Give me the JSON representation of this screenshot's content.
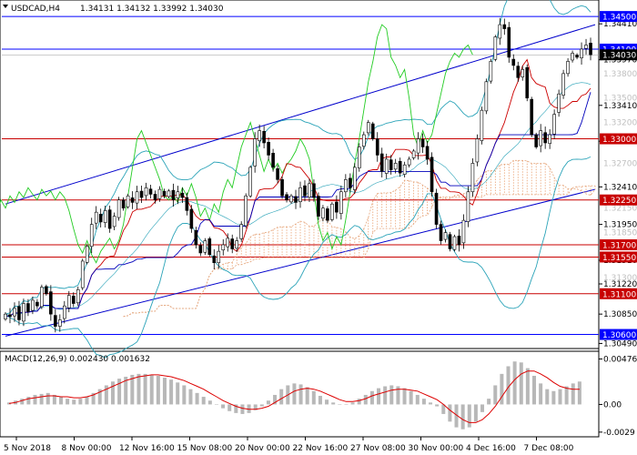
{
  "chart_data": [
    {
      "type": "candlestick",
      "symbol_label": "USDCAD,H4",
      "ohlc_label": "1.34131 1.34132 1.33992 1.34030",
      "ylim": [
        1.3045,
        1.3468
      ],
      "y_ticks": [
        "1.34410",
        "1.33970",
        "1.33410",
        "1.32970",
        "1.32410",
        "1.31950",
        "1.31510",
        "1.31220",
        "1.30850",
        "1.30490"
      ],
      "y_ticks_faded": [
        "1.33800",
        "1.33500",
        "1.33200",
        "1.32700",
        "1.32150",
        "1.31850",
        "1.31300"
      ],
      "x_ticks": [
        "5 Nov 2018",
        "8 Nov 00:00",
        "12 Nov 16:00",
        "15 Nov 08:00",
        "20 Nov 00:00",
        "22 Nov 16:00",
        "27 Nov 08:00",
        "30 Nov 00:00",
        "4 Dec 16:00",
        "7 Dec 08:00"
      ],
      "levels": [
        {
          "label": "1.34500",
          "value": 1.345,
          "color": "#0000ff",
          "kind": "line"
        },
        {
          "label": "1.34100",
          "value": 1.341,
          "color": "#0000ff",
          "kind": "line"
        },
        {
          "label": "1.34030",
          "value": 1.3403,
          "color": "#000000",
          "kind": "price"
        },
        {
          "label": "1.33000",
          "value": 1.33,
          "color": "#c80000",
          "kind": "line"
        },
        {
          "label": "1.32250",
          "value": 1.3225,
          "color": "#c80000",
          "kind": "line"
        },
        {
          "label": "1.31700",
          "value": 1.317,
          "color": "#c80000",
          "kind": "line"
        },
        {
          "label": "1.31550",
          "value": 1.3155,
          "color": "#c80000",
          "kind": "line"
        },
        {
          "label": "1.31100",
          "value": 1.311,
          "color": "#c80000",
          "kind": "line"
        },
        {
          "label": "1.30600",
          "value": 1.306,
          "color": "#0000ff",
          "kind": "line"
        }
      ],
      "channel": {
        "upper": [
          [
            0,
            1.322
          ],
          [
            130,
            1.344
          ]
        ],
        "lower": [
          [
            0,
            1.3058
          ],
          [
            130,
            1.3238
          ]
        ]
      },
      "closes": [
        1.3085,
        1.3082,
        1.3092,
        1.3078,
        1.3098,
        1.3088,
        1.3102,
        1.3095,
        1.3118,
        1.311,
        1.3085,
        1.307,
        1.3078,
        1.3095,
        1.3108,
        1.3098,
        1.3115,
        1.315,
        1.3168,
        1.3195,
        1.321,
        1.3198,
        1.3212,
        1.319,
        1.3205,
        1.3225,
        1.3215,
        1.323,
        1.3222,
        1.3235,
        1.3228,
        1.324,
        1.3232,
        1.3225,
        1.3238,
        1.323,
        1.3236,
        1.3225,
        1.3235,
        1.3228,
        1.3212,
        1.319,
        1.317,
        1.316,
        1.3175,
        1.3158,
        1.3148,
        1.3162,
        1.317,
        1.3178,
        1.3165,
        1.3175,
        1.3195,
        1.323,
        1.3265,
        1.33,
        1.331,
        1.3295,
        1.328,
        1.3265,
        1.325,
        1.323,
        1.3225,
        1.323,
        1.3222,
        1.324,
        1.323,
        1.3245,
        1.3228,
        1.3205,
        1.3215,
        1.32,
        1.322,
        1.321,
        1.3235,
        1.325,
        1.324,
        1.3265,
        1.329,
        1.3305,
        1.332,
        1.33,
        1.328,
        1.326,
        1.3275,
        1.3262,
        1.327,
        1.3258,
        1.3268,
        1.3275,
        1.3285,
        1.33,
        1.329,
        1.3275,
        1.3235,
        1.3195,
        1.3175,
        1.3185,
        1.3165,
        1.318,
        1.317,
        1.32,
        1.3235,
        1.327,
        1.33,
        1.3335,
        1.337,
        1.3395,
        1.3425,
        1.344,
        1.3435,
        1.34,
        1.339,
        1.3375,
        1.3385,
        1.335,
        1.3305,
        1.329,
        1.331,
        1.3295,
        1.3305,
        1.333,
        1.3355,
        1.338,
        1.3395,
        1.3405,
        1.34,
        1.341,
        1.3415,
        1.3403
      ],
      "macd": {
        "label": "MACD(12,26,9) 0.002430 0.001632",
        "y_ticks": [
          "0.004766",
          "0.00",
          "-0.0029"
        ],
        "ylim": [
          -0.0032,
          0.005
        ],
        "histogram": [
          0.0002,
          0.0004,
          0.0006,
          0.0008,
          0.001,
          0.0011,
          0.0012,
          0.001,
          0.0008,
          0.0006,
          0.0005,
          0.0006,
          0.0008,
          0.0012,
          0.0016,
          0.002,
          0.0024,
          0.0027,
          0.0029,
          0.0031,
          0.0032,
          0.0032,
          0.0031,
          0.003,
          0.0028,
          0.0026,
          0.0023,
          0.002,
          0.0016,
          0.0012,
          0.0008,
          0.0004,
          0.0,
          -0.0004,
          -0.0007,
          -0.0009,
          -0.001,
          -0.0009,
          -0.0006,
          -0.0002,
          0.0004,
          0.001,
          0.0016,
          0.002,
          0.0022,
          0.0021,
          0.0018,
          0.0014,
          0.0009,
          0.0005,
          0.0002,
          0.0,
          0.0,
          0.0002,
          0.0006,
          0.001,
          0.0014,
          0.0017,
          0.0019,
          0.002,
          0.0019,
          0.0017,
          0.0014,
          0.001,
          0.0006,
          0.0002,
          -0.0002,
          -0.001,
          -0.0018,
          -0.0024,
          -0.0026,
          -0.0024,
          -0.0018,
          -0.0008,
          0.0006,
          0.002,
          0.0032,
          0.004,
          0.0045,
          0.0044,
          0.0038,
          0.003,
          0.0022,
          0.0016,
          0.0014,
          0.0016,
          0.0019,
          0.0022,
          0.0024
        ],
        "signal": [
          0.0001,
          0.0002,
          0.0004,
          0.0006,
          0.0007,
          0.0008,
          0.0009,
          0.0009,
          0.0008,
          0.0008,
          0.0007,
          0.0007,
          0.0008,
          0.001,
          0.0013,
          0.0016,
          0.0019,
          0.0022,
          0.0025,
          0.0027,
          0.0029,
          0.003,
          0.0031,
          0.0031,
          0.003,
          0.0029,
          0.0027,
          0.0025,
          0.0022,
          0.0019,
          0.0016,
          0.0012,
          0.0008,
          0.0004,
          0.0001,
          -0.0002,
          -0.0004,
          -0.0005,
          -0.0005,
          -0.0004,
          -0.0002,
          0.0002,
          0.0006,
          0.001,
          0.0014,
          0.0016,
          0.0017,
          0.0016,
          0.0014,
          0.0011,
          0.0008,
          0.0005,
          0.0003,
          0.0003,
          0.0004,
          0.0006,
          0.0009,
          0.0011,
          0.0013,
          0.0015,
          0.0016,
          0.0016,
          0.0015,
          0.0014,
          0.0011,
          0.0008,
          0.0005,
          0.0,
          -0.0006,
          -0.0011,
          -0.0016,
          -0.0019,
          -0.0019,
          -0.0016,
          -0.001,
          -0.0002,
          0.0008,
          0.0018,
          0.0026,
          0.0032,
          0.0035,
          0.0035,
          0.0032,
          0.0028,
          0.0023,
          0.0019,
          0.0017,
          0.0016,
          0.0016
        ]
      }
    }
  ]
}
